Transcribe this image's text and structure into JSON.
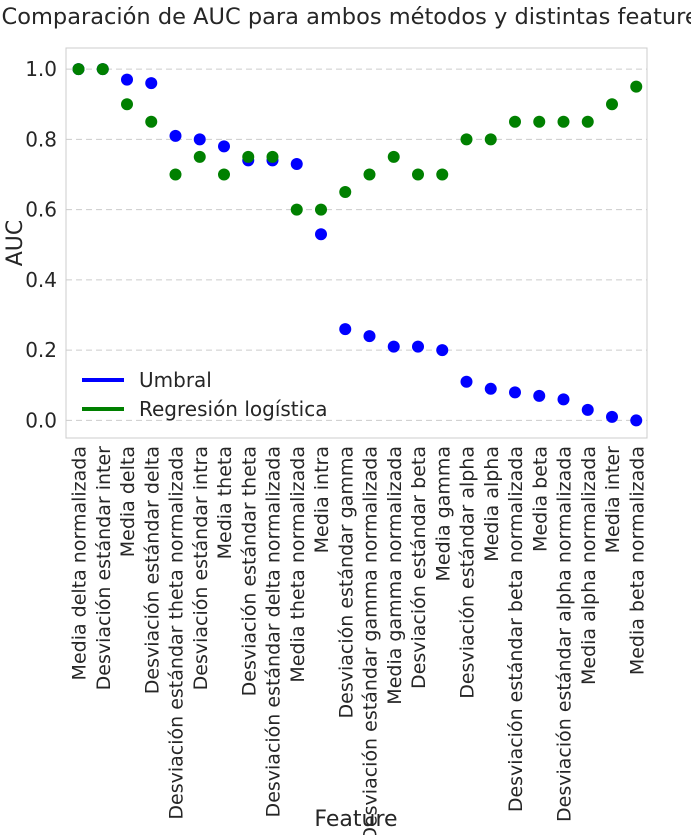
{
  "chart_data": {
    "type": "scatter",
    "title": "Comparación de AUC para ambos métodos y distintas features",
    "xlabel": "Feature",
    "ylabel": "AUC",
    "ylim": [
      -0.05,
      1.06
    ],
    "yticks": [
      "0.0",
      "0.2",
      "0.4",
      "0.6",
      "0.8",
      "1.0"
    ],
    "grid": "horizontal dashed",
    "legend_position": "lower-left",
    "categories": [
      "Media delta normalizada",
      "Desviación estándar inter",
      "Media delta",
      "Desviación estándar delta",
      "Desviación estándar theta normalizada",
      "Desviación estándar intra",
      "Media theta",
      "Desviación estándar theta",
      "Desviación estándar delta normalizada",
      "Media theta normalizada",
      "Media intra",
      "Desviación estándar gamma",
      "Desviación estándar gamma normalizada",
      "Media gamma normalizada",
      "Desviación estándar beta",
      "Media gamma",
      "Desviación estándar alpha",
      "Media alpha",
      "Desviación estándar beta normalizada",
      "Media beta",
      "Desviación estándar alpha normalizada",
      "Media alpha normalizada",
      "Media inter",
      "Media beta normalizada"
    ],
    "series": [
      {
        "name": "Umbral",
        "color": "#0000ff",
        "values": [
          1.0,
          1.0,
          0.97,
          0.96,
          0.81,
          0.8,
          0.78,
          0.74,
          0.74,
          0.73,
          0.53,
          0.26,
          0.24,
          0.21,
          0.21,
          0.2,
          0.11,
          0.09,
          0.08,
          0.07,
          0.06,
          0.03,
          0.01,
          0.0
        ]
      },
      {
        "name": "Regresión logística",
        "color": "#008000",
        "values": [
          1.0,
          1.0,
          0.9,
          0.85,
          0.7,
          0.75,
          0.7,
          0.75,
          0.75,
          0.6,
          0.6,
          0.65,
          0.7,
          0.75,
          0.7,
          0.7,
          0.8,
          0.8,
          0.85,
          0.85,
          0.85,
          0.85,
          0.9,
          0.95
        ]
      }
    ]
  }
}
